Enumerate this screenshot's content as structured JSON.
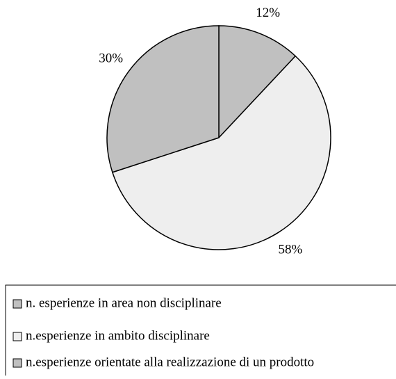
{
  "chart_data": {
    "type": "pie",
    "categories": [
      "n. esperienze in area non disciplinare",
      "n.esperienze in ambito disciplinare",
      "n.esperienze orientate alla realizzazione di un prodotto"
    ],
    "values": [
      12,
      58,
      30
    ],
    "value_labels": [
      "12%",
      "58%",
      "30%"
    ],
    "colors": [
      "#c0c0c0",
      "#eeeeee",
      "#c0c0c0"
    ],
    "legend": "bottom"
  }
}
